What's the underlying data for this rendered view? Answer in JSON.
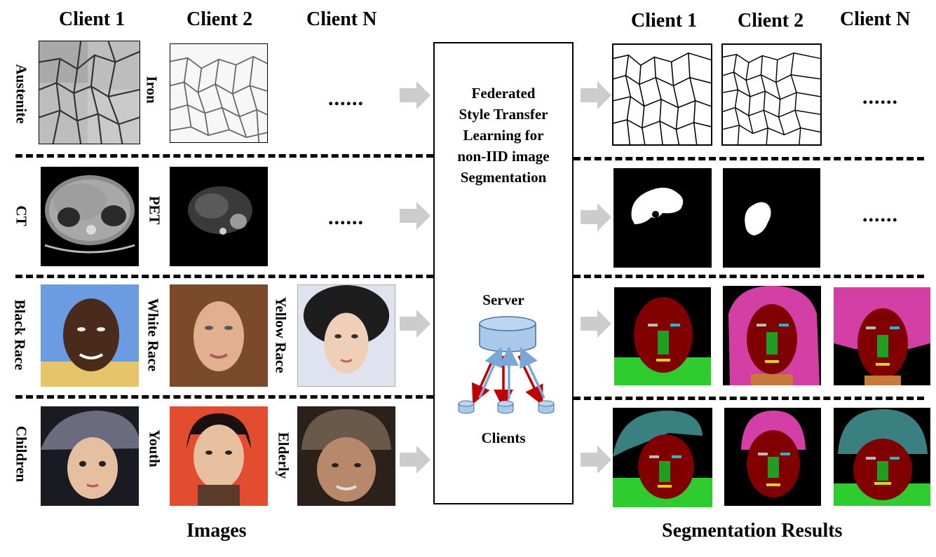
{
  "headers": {
    "left": [
      "Client 1",
      "Client 2",
      "Client N"
    ],
    "right": [
      "Client 1",
      "Client 2",
      "Client N"
    ]
  },
  "rows": [
    {
      "labels": [
        "Austenite",
        "Iron"
      ],
      "placeholder": "......",
      "result_placeholder": "......"
    },
    {
      "labels": [
        "CT",
        "PET"
      ],
      "placeholder": "......",
      "result_placeholder": "......"
    },
    {
      "labels": [
        "Black Race",
        "White Race",
        "Yellow Race"
      ]
    },
    {
      "labels": [
        "Children",
        "Youth",
        "Elderly"
      ]
    }
  ],
  "center": {
    "title": "Federated\nStyle Transfer\nLearning for\nnon-IID image\nSegmentation",
    "server_label": "Server",
    "clients_label": "Clients"
  },
  "footer": {
    "left": "Images",
    "right": "Segmentation Results"
  },
  "colors": {
    "arrow_fill": "#cccccc",
    "database_fill": "#a9c8ea",
    "up_arrow": "#7aa7d6",
    "down_arrow": "#c00000",
    "seg_face": "#800000",
    "seg_hair": "#d43fa5",
    "seg_cap": "#3a8080",
    "seg_body": "#2ecc2e",
    "seg_nose": "#1f9e1f"
  }
}
